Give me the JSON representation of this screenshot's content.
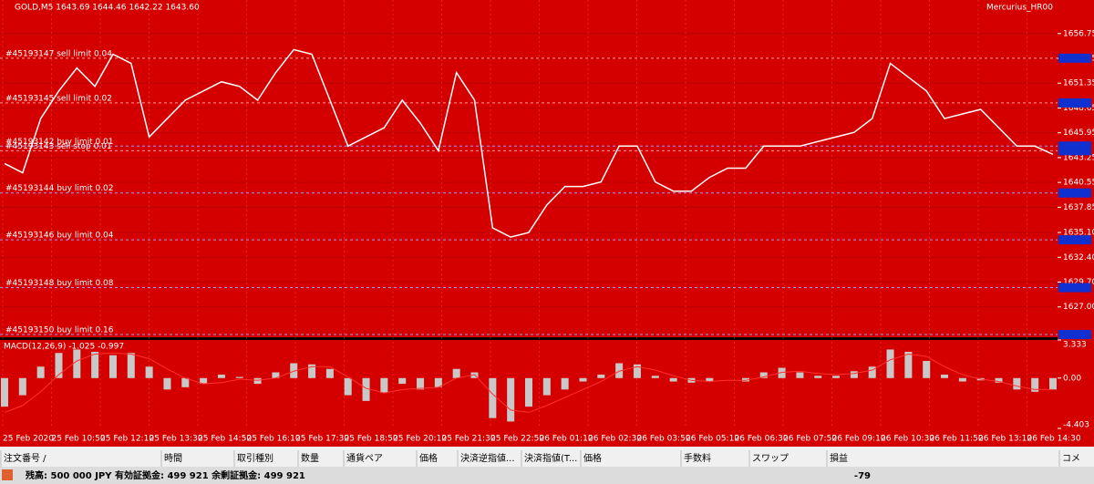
{
  "window": {
    "title": "GOLD,M5 1643.69 1644.46 1642.22 1643.60",
    "expert": "Mercurius_HR00"
  },
  "chart_data": [
    {
      "type": "line",
      "color": "#ffffff",
      "ylim": [
        1623.7,
        1660.4
      ],
      "yticks": [
        1656.75,
        1654.05,
        1651.35,
        1648.65,
        1645.95,
        1643.25,
        1640.55,
        1637.85,
        {
          "value": 1635.1,
          "label": "1635.10"
        },
        {
          "value": 1632.4,
          "label": "1632.40"
        },
        {
          "value": 1629.7,
          "label": "1629.70"
        },
        {
          "value": 1627,
          "label": "1627.00"
        }
      ],
      "values": [
        1642.6,
        1641.6,
        1647.5,
        1650.5,
        1653.0,
        1651.0,
        1654.5,
        1653.5,
        1645.5,
        1647.5,
        1649.5,
        1650.5,
        1651.5,
        1651.0,
        1649.5,
        1652.5,
        1655.0,
        1654.5,
        1649.5,
        1644.5,
        1645.5,
        1646.5,
        1649.5,
        1647.0,
        1644.0,
        1652.5,
        1649.5,
        1635.6,
        1634.6,
        1635.1,
        1638.1,
        1640.1,
        1640.1,
        1640.6,
        1644.5,
        1644.5,
        1640.6,
        1639.6,
        1639.6,
        1641.1,
        1642.1,
        1642.1,
        1644.5,
        1644.5,
        1644.5,
        1645.0,
        1645.5,
        1646.0,
        1647.5,
        1653.5,
        1652.0,
        1650.5,
        1647.5,
        1648.0,
        1648.5,
        1646.5,
        1644.5,
        1644.5,
        1643.6
      ],
      "orders": [
        {
          "label": "#45193147 sell limit 0.04",
          "price": 1654.07,
          "color": "#ff9a9a"
        },
        {
          "label": "#45193145 sell limit 0.02",
          "price": 1649.2,
          "color": "#ff9a9a"
        },
        {
          "label": "#45193142 buy limit 0.01",
          "price": 1644.5,
          "color": "#9a9aff"
        },
        {
          "label": "#45193143 sell stop 0.01",
          "price": 1644.0,
          "color": "#ff9a9a"
        },
        {
          "label": "#45193144 buy limit 0.02",
          "price": 1639.4,
          "color": "#9a9aff"
        },
        {
          "label": "#45193146 buy limit 0.04",
          "price": 1634.3,
          "color": "#9a9aff"
        },
        {
          "label": "#45193148 buy limit 0.08",
          "price": 1629.1,
          "color": "#9a9aff"
        },
        {
          "label": "#45193150 buy limit 0.16",
          "price": 1624.0,
          "color": "#9a9aff"
        }
      ],
      "time_labels": [
        "25 Feb 2020",
        "25 Feb 10:50",
        "25 Feb 12:10",
        "25 Feb 13:30",
        "25 Feb 14:50",
        "25 Feb 16:10",
        "25 Feb 17:30",
        "25 Feb 18:50",
        "25 Feb 20:10",
        "25 Feb 21:30",
        "25 Feb 22:50",
        "26 Feb 01:10",
        "26 Feb 02:30",
        "26 Feb 03:50",
        "26 Feb 05:10",
        "26 Feb 06:30",
        "26 Feb 07:50",
        "26 Feb 09:10",
        "26 Feb 10:30",
        "26 Feb 11:50",
        "26 Feb 13:10",
        "26 Feb 14:30"
      ]
    },
    {
      "type": "macd",
      "title": "MACD(12,26,9) -1.025 -0.997",
      "color": "#c8c8c8",
      "signal_color": "#ff3030",
      "ylim": [
        -4.403,
        3.333
      ],
      "yticks": [
        3.333,
        {
          "value": 0,
          "label": "0.00"
        },
        -4.403
      ],
      "values": [
        -2.5,
        -1.5,
        1.0,
        2.2,
        2.5,
        2.3,
        2.0,
        2.2,
        1.0,
        -1.0,
        -0.8,
        -0.5,
        0.3,
        0.1,
        -0.5,
        0.5,
        1.3,
        1.2,
        0.8,
        -1.5,
        -2.0,
        -1.3,
        -0.5,
        -1.0,
        -0.8,
        0.8,
        0.5,
        -3.5,
        -3.8,
        -2.5,
        -1.5,
        -1.0,
        -0.3,
        0.3,
        1.3,
        1.2,
        0.2,
        -0.3,
        -0.4,
        -0.3,
        0.0,
        -0.3,
        0.5,
        0.9,
        0.5,
        0.2,
        0.2,
        0.6,
        1.0,
        2.5,
        2.3,
        1.5,
        0.3,
        -0.3,
        -0.2,
        -0.4,
        -1.0,
        -1.2,
        -1.0
      ],
      "signal": [
        -3.0,
        -2.4,
        -1.2,
        0.3,
        1.5,
        2.1,
        2.2,
        2.1,
        1.7,
        0.8,
        0.0,
        -0.5,
        -0.4,
        -0.1,
        -0.2,
        0.0,
        0.6,
        1.0,
        1.0,
        0.1,
        -0.9,
        -1.3,
        -1.0,
        -0.9,
        -0.8,
        0.0,
        0.3,
        -1.4,
        -2.8,
        -3.0,
        -2.4,
        -1.7,
        -1.0,
        -0.3,
        0.6,
        1.0,
        0.7,
        0.2,
        -0.2,
        -0.3,
        -0.2,
        -0.2,
        0.1,
        0.5,
        0.6,
        0.4,
        0.3,
        0.4,
        0.7,
        1.6,
        2.1,
        1.9,
        1.0,
        0.3,
        -0.1,
        -0.3,
        -0.7,
        -1.0,
        -1.0
      ]
    }
  ],
  "terminal": {
    "columns": [
      "注文番号 /",
      "時間",
      "取引種別",
      "数量",
      "通貨ペア",
      "価格",
      "決済逆指値...",
      "決済指値(T...",
      "価格",
      "手数料",
      "スワップ",
      "損益",
      "コメ"
    ],
    "balance": "残高: 500 000 JPY  有効証拠金: 499 921  余剰証拠金: 499 921",
    "profit": -79
  }
}
